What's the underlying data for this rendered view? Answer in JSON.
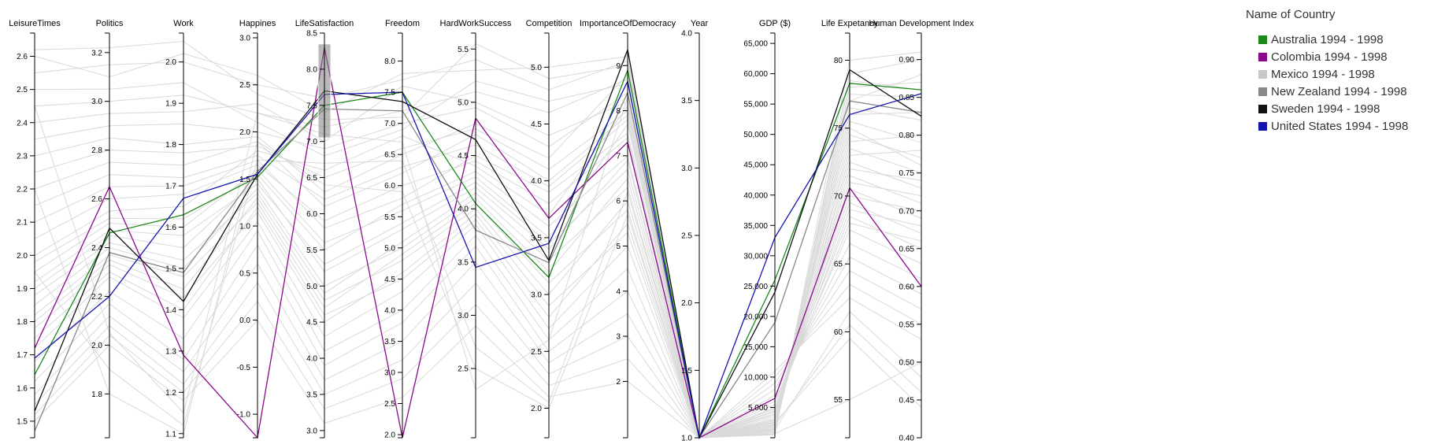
{
  "legend": {
    "title": "Name of Country",
    "items": [
      {
        "label": "Australia 1994 - 1998",
        "color": "#1a8a1a"
      },
      {
        "label": "Colombia 1994 - 1998",
        "color": "#8b0a8b"
      },
      {
        "label": "Mexico 1994 - 1998",
        "color": "#c8c8c8"
      },
      {
        "label": "New Zealand 1994 - 1998",
        "color": "#888888"
      },
      {
        "label": "Sweden 1994 - 1998",
        "color": "#111111"
      },
      {
        "label": "United States 1994 - 1998",
        "color": "#1515b0"
      }
    ]
  },
  "chart_data": {
    "type": "parallel-coordinates",
    "axes": [
      {
        "name": "LeisureTimes",
        "range": [
          1.45,
          2.67
        ],
        "ticks": [
          1.5,
          1.6,
          1.7,
          1.8,
          1.9,
          2.0,
          2.1,
          2.2,
          2.3,
          2.4,
          2.5,
          2.6
        ],
        "labels": [
          "1.5",
          "1.6",
          "1.7",
          "1.8",
          "1.9",
          "2.0",
          "2.1",
          "2.2",
          "2.3",
          "2.4",
          "2.5",
          "2.6"
        ]
      },
      {
        "name": "Politics",
        "range": [
          1.62,
          3.28
        ],
        "ticks": [
          1.8,
          2.0,
          2.2,
          2.4,
          2.6,
          2.8,
          3.0,
          3.2
        ],
        "labels": [
          "1.8",
          "2.0",
          "2.2",
          "2.4",
          "2.6",
          "2.8",
          "3.0",
          "3.2"
        ]
      },
      {
        "name": "Work",
        "range": [
          1.09,
          2.07
        ],
        "ticks": [
          1.1,
          1.2,
          1.3,
          1.4,
          1.5,
          1.6,
          1.7,
          1.8,
          1.9,
          2.0
        ],
        "labels": [
          "1.1",
          "1.2",
          "1.3",
          "1.4",
          "1.5",
          "1.6",
          "1.7",
          "1.8",
          "1.9",
          "2.0"
        ]
      },
      {
        "name": "Happines",
        "range": [
          -1.25,
          3.05
        ],
        "ticks": [
          -1.0,
          -0.5,
          0.0,
          0.5,
          1.0,
          1.5,
          2.0,
          2.5,
          3.0
        ],
        "labels": [
          "-1.0",
          "-0.5",
          "0.0",
          "0.5",
          "1.0",
          "1.5",
          "2.0",
          "2.5",
          "3.0"
        ]
      },
      {
        "name": "LifeSatisfaction",
        "range": [
          2.9,
          8.5
        ],
        "ticks": [
          3.0,
          3.5,
          4.0,
          4.5,
          5.0,
          5.5,
          6.0,
          6.5,
          7.0,
          7.5,
          8.0,
          8.5
        ],
        "labels": [
          "3.0",
          "3.5",
          "4.0",
          "4.5",
          "5.0",
          "5.5",
          "6.0",
          "6.5",
          "7.0",
          "7.5",
          "8.0",
          "8.5"
        ]
      },
      {
        "name": "Freedom",
        "range": [
          1.95,
          8.45
        ],
        "ticks": [
          2.0,
          2.5,
          3.0,
          3.5,
          4.0,
          4.5,
          5.0,
          5.5,
          6.0,
          6.5,
          7.0,
          7.5,
          8.0
        ],
        "labels": [
          "2.0",
          "2.5",
          "3.0",
          "3.5",
          "4.0",
          "4.5",
          "5.0",
          "5.5",
          "6.0",
          "6.5",
          "7.0",
          "7.5",
          "8.0"
        ]
      },
      {
        "name": "HardWorkSuccess",
        "range": [
          1.85,
          5.65
        ],
        "ticks": [
          2.5,
          3.0,
          3.5,
          4.0,
          4.5,
          5.0,
          5.5
        ],
        "labels": [
          "2.5",
          "3.0",
          "3.5",
          "4.0",
          "4.5",
          "5.0",
          "5.5"
        ]
      },
      {
        "name": "Competition",
        "range": [
          1.74,
          5.3
        ],
        "ticks": [
          2.0,
          2.5,
          3.0,
          3.5,
          4.0,
          4.5,
          5.0
        ],
        "labels": [
          "2.0",
          "2.5",
          "3.0",
          "3.5",
          "4.0",
          "4.5",
          "5.0"
        ]
      },
      {
        "name": "ImportanceOfDemocracy",
        "range": [
          0.75,
          9.72
        ],
        "ticks": [
          2,
          3,
          4,
          5,
          6,
          7,
          8,
          9
        ],
        "labels": [
          "2",
          "3",
          "4",
          "5",
          "6",
          "7",
          "8",
          "9"
        ]
      },
      {
        "name": "Year",
        "range": [
          1.0,
          4.0
        ],
        "ticks": [
          1.0,
          1.5,
          2.0,
          2.5,
          3.0,
          3.5,
          4.0
        ],
        "labels": [
          "1.0",
          "1.5",
          "2.0",
          "2.5",
          "3.0",
          "3.5",
          "4.0"
        ]
      },
      {
        "name": "GDP ($)",
        "range": [
          0,
          66700
        ],
        "ticks": [
          5000,
          10000,
          15000,
          20000,
          25000,
          30000,
          35000,
          40000,
          45000,
          50000,
          55000,
          60000,
          65000
        ],
        "labels": [
          "5,000",
          "10,000",
          "15,000",
          "20,000",
          "25,000",
          "30,000",
          "35,000",
          "40,000",
          "45,000",
          "50,000",
          "55,000",
          "60,000",
          "65,000"
        ]
      },
      {
        "name": "Life Expetancy",
        "range": [
          52.2,
          82.0
        ],
        "ticks": [
          55,
          60,
          65,
          70,
          75,
          80
        ],
        "labels": [
          "55",
          "60",
          "65",
          "70",
          "75",
          "80"
        ]
      },
      {
        "name": "Human Development Index",
        "range": [
          0.4,
          0.935
        ],
        "ticks": [
          0.4,
          0.45,
          0.5,
          0.55,
          0.6,
          0.65,
          0.7,
          0.75,
          0.8,
          0.85,
          0.9
        ],
        "labels": [
          "0.40",
          "0.45",
          "0.50",
          "0.55",
          "0.60",
          "0.65",
          "0.70",
          "0.75",
          "0.80",
          "0.85",
          "0.90"
        ]
      }
    ],
    "brush": {
      "axis": "LifeSatisfaction",
      "range": [
        7.05,
        8.35
      ]
    },
    "series": [
      {
        "name": "Australia 1994 - 1998",
        "color": "#1a8a1a",
        "values": [
          1.64,
          2.46,
          1.63,
          1.52,
          7.5,
          7.5,
          4.05,
          3.15,
          8.9,
          1.0,
          26000,
          78.3,
          0.86
        ]
      },
      {
        "name": "Colombia 1994 - 1998",
        "color": "#8b0a8b",
        "values": [
          1.72,
          2.65,
          1.29,
          -1.25,
          8.3,
          1.95,
          4.85,
          3.67,
          7.3,
          1.0,
          6500,
          70.6,
          0.6
        ]
      },
      {
        "name": "New Zealand 1994 - 1998",
        "color": "#888888",
        "values": [
          1.47,
          2.38,
          1.49,
          1.58,
          7.45,
          7.2,
          3.8,
          3.28,
          8.4,
          1.0,
          19000,
          77.0,
          0.83
        ]
      },
      {
        "name": "Sweden 1994 - 1998",
        "color": "#111111",
        "values": [
          1.53,
          2.48,
          1.42,
          1.55,
          7.7,
          7.35,
          4.65,
          3.3,
          9.35,
          1.0,
          24000,
          79.3,
          0.825
        ]
      },
      {
        "name": "United States 1994 - 1998",
        "color": "#1515b0",
        "values": [
          1.69,
          2.2,
          1.67,
          1.55,
          7.65,
          7.5,
          3.45,
          3.45,
          8.65,
          1.0,
          33000,
          76.0,
          0.855
        ]
      }
    ],
    "background_series": [
      [
        2.62,
        3.22,
        2.05,
        2.4,
        7.3,
        7.1,
        5.55,
        4.9,
        9.0,
        1.0,
        500,
        80.0,
        0.91
      ],
      [
        2.5,
        3.05,
        1.95,
        2.1,
        6.8,
        6.9,
        5.2,
        4.7,
        8.6,
        1.0,
        900,
        77.0,
        0.88
      ],
      [
        2.4,
        2.95,
        1.88,
        2.3,
        7.0,
        7.6,
        5.0,
        4.4,
        8.2,
        1.0,
        1200,
        78.5,
        0.86
      ],
      [
        2.3,
        2.85,
        1.8,
        1.95,
        6.3,
        6.5,
        4.8,
        4.2,
        8.8,
        1.0,
        1500,
        76.0,
        0.83
      ],
      [
        2.2,
        2.75,
        1.75,
        1.9,
        6.1,
        6.2,
        4.7,
        4.0,
        7.9,
        1.0,
        1800,
        74.0,
        0.8
      ],
      [
        2.1,
        2.65,
        1.7,
        1.7,
        5.8,
        5.8,
        4.5,
        3.9,
        7.5,
        1.0,
        2200,
        73.0,
        0.78
      ],
      [
        2.0,
        2.55,
        1.65,
        1.8,
        6.6,
        6.8,
        4.4,
        3.7,
        8.1,
        1.0,
        2600,
        75.0,
        0.76
      ],
      [
        1.95,
        2.5,
        1.6,
        1.6,
        5.6,
        5.6,
        4.3,
        3.5,
        7.7,
        1.0,
        3000,
        72.0,
        0.74
      ],
      [
        1.9,
        2.45,
        1.55,
        1.5,
        5.2,
        5.3,
        4.2,
        3.4,
        6.9,
        1.0,
        3500,
        71.0,
        0.72
      ],
      [
        1.85,
        2.4,
        1.5,
        1.4,
        5.0,
        5.0,
        4.1,
        3.2,
        6.5,
        1.0,
        4000,
        70.0,
        0.7
      ],
      [
        1.8,
        2.35,
        1.45,
        1.3,
        4.8,
        4.8,
        4.0,
        3.0,
        6.0,
        1.0,
        4500,
        69.0,
        0.68
      ],
      [
        1.75,
        2.3,
        1.4,
        1.2,
        4.6,
        4.5,
        3.9,
        2.8,
        5.5,
        1.0,
        5000,
        68.0,
        0.66
      ],
      [
        2.55,
        3.15,
        2.0,
        2.5,
        7.6,
        7.7,
        5.4,
        4.8,
        9.1,
        1.0,
        600,
        79.0,
        0.9
      ],
      [
        2.45,
        3.0,
        1.92,
        2.2,
        7.2,
        7.2,
        5.1,
        4.6,
        8.7,
        1.0,
        1000,
        78.0,
        0.87
      ],
      [
        2.35,
        2.9,
        1.85,
        2.0,
        6.9,
        7.0,
        4.95,
        4.3,
        8.4,
        1.0,
        1400,
        77.5,
        0.85
      ],
      [
        2.25,
        2.8,
        1.78,
        1.85,
        6.5,
        6.6,
        4.75,
        4.1,
        8.0,
        1.0,
        1700,
        76.5,
        0.82
      ],
      [
        2.15,
        2.7,
        1.72,
        1.75,
        6.2,
        6.3,
        4.6,
        3.95,
        7.8,
        1.0,
        2000,
        75.5,
        0.79
      ],
      [
        2.05,
        2.6,
        1.68,
        1.65,
        5.9,
        6.0,
        4.45,
        3.8,
        7.4,
        1.0,
        2400,
        74.5,
        0.77
      ],
      [
        1.98,
        2.52,
        1.62,
        1.55,
        5.5,
        5.7,
        4.35,
        3.6,
        7.0,
        1.0,
        2800,
        73.5,
        0.75
      ],
      [
        1.92,
        2.47,
        1.58,
        1.45,
        5.3,
        5.4,
        4.25,
        3.45,
        6.7,
        1.0,
        3200,
        72.5,
        0.73
      ],
      [
        1.88,
        2.42,
        1.52,
        1.35,
        4.9,
        5.1,
        4.15,
        3.3,
        6.3,
        1.0,
        3800,
        71.5,
        0.71
      ],
      [
        1.82,
        2.37,
        1.48,
        1.25,
        4.7,
        4.9,
        4.05,
        3.1,
        5.8,
        1.0,
        4300,
        70.5,
        0.69
      ],
      [
        1.78,
        2.33,
        1.43,
        1.15,
        4.5,
        4.6,
        3.95,
        2.9,
        5.3,
        1.0,
        4800,
        69.5,
        0.67
      ],
      [
        1.72,
        2.28,
        1.38,
        1.05,
        4.3,
        4.3,
        3.85,
        2.7,
        5.0,
        1.0,
        5500,
        68.5,
        0.65
      ],
      [
        1.68,
        2.22,
        1.33,
        0.95,
        4.1,
        4.0,
        3.75,
        2.6,
        4.5,
        1.0,
        6000,
        67.5,
        0.63
      ],
      [
        1.62,
        2.17,
        1.28,
        0.8,
        3.9,
        3.8,
        3.65,
        2.5,
        4.0,
        1.0,
        7000,
        66.5,
        0.61
      ],
      [
        1.58,
        2.12,
        1.25,
        0.6,
        3.7,
        3.5,
        3.5,
        2.4,
        3.5,
        1.0,
        8000,
        65.5,
        0.59
      ],
      [
        1.55,
        2.08,
        1.22,
        0.4,
        3.5,
        3.2,
        3.3,
        2.3,
        3.0,
        1.0,
        9000,
        64.5,
        0.57
      ],
      [
        1.52,
        2.04,
        1.2,
        0.2,
        3.3,
        2.9,
        3.1,
        2.2,
        2.5,
        1.0,
        10000,
        63.5,
        0.55
      ],
      [
        1.5,
        2.0,
        1.18,
        0.0,
        3.1,
        2.6,
        2.9,
        2.1,
        2.0,
        1.0,
        11000,
        62.5,
        0.53
      ],
      [
        2.6,
        3.1,
        2.02,
        2.6,
        7.4,
        7.8,
        5.3,
        5.0,
        9.2,
        1.0,
        700,
        55.0,
        0.5
      ],
      [
        1.95,
        1.9,
        1.12,
        1.7,
        6.7,
        6.4,
        2.7,
        2.05,
        6.2,
        1.0,
        1300,
        61.5,
        0.48
      ],
      [
        2.2,
        1.8,
        1.1,
        1.9,
        6.4,
        5.9,
        2.5,
        2.0,
        5.7,
        1.0,
        2100,
        60.5,
        0.46
      ],
      [
        2.45,
        2.05,
        1.15,
        2.2,
        7.1,
        6.7,
        2.3,
        2.6,
        8.3,
        1.0,
        2500,
        59.5,
        0.44
      ]
    ]
  }
}
